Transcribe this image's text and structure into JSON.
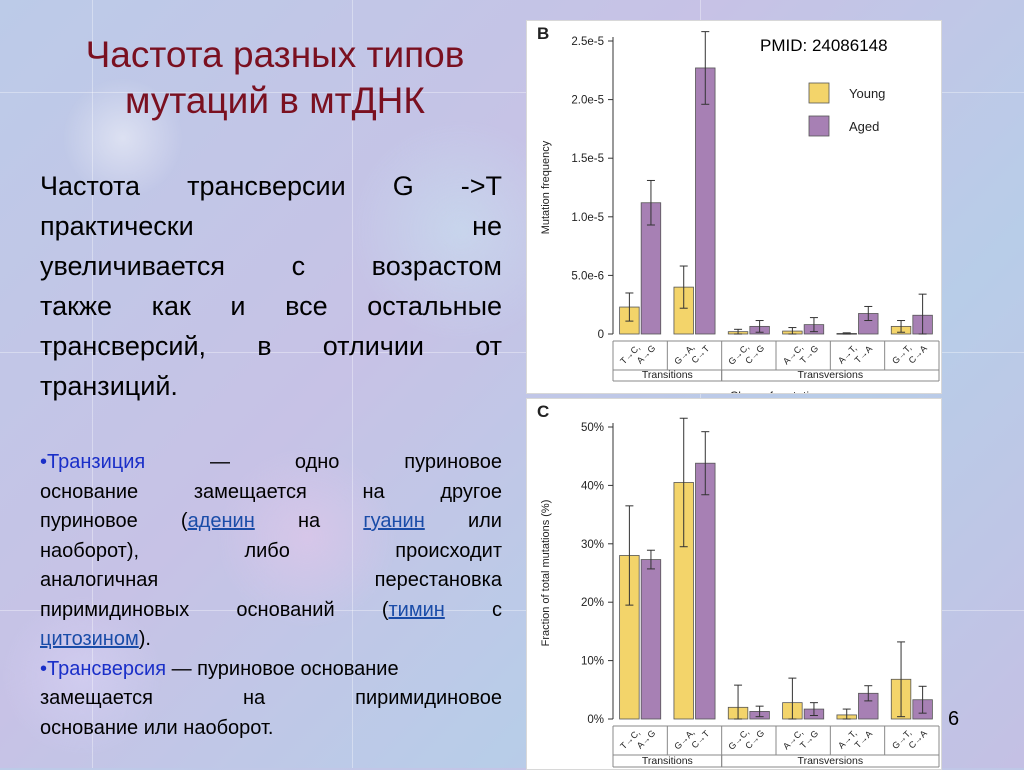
{
  "slide": {
    "title_line1": "Частота  разных типов",
    "title_line2": "мутаций в мтДНК",
    "page_number": "6",
    "pmid": "PMID: 24086148"
  },
  "lead": {
    "lines": [
      [
        "Частота",
        "трансверсии",
        "G",
        "->T"
      ],
      [
        "практически",
        "не"
      ],
      [
        "увеличивается",
        "с",
        "возрастом"
      ],
      [
        "также",
        "как",
        "и",
        "все",
        "остальные"
      ],
      [
        "трансверсий,",
        "в",
        "отличии",
        "от"
      ],
      [
        "транзиций."
      ]
    ]
  },
  "defs": {
    "bullet": "•",
    "transition_term": "Транзиция",
    "dash1": "—",
    "l1_rest": [
      "одно",
      "пуриновое"
    ],
    "l2": [
      "основание",
      "замещается",
      "на",
      "другое"
    ],
    "l3_a": "пуриновое",
    "l3_paren_open": "(",
    "adenin": "аденин",
    "l3_na": "на",
    "guanin": "гуанин",
    "l3_ili": "или",
    "l4": [
      "наоборот),",
      "либо",
      "происходит"
    ],
    "l5": [
      "аналогичная",
      "перестановка"
    ],
    "l6_a": [
      "пиримидиновых",
      "оснований"
    ],
    "l6_paren": "(",
    "timin": "тимин",
    "l6_s": "с",
    "citozin": "цитозином",
    "l7_tail": ").",
    "transversion_term": "Трансверсия",
    "l8_rest": " — пуриновое основание",
    "l9": [
      "замещается",
      "на",
      "пиримидиновое"
    ],
    "l10": "основание или наоборот."
  },
  "chart_data": [
    {
      "type": "bar",
      "panel_label": "B",
      "ylabel": "Mutation frequency",
      "xlabel": "Class of mutation",
      "ylim": [
        0,
        2.5e-05
      ],
      "yticks": [
        0,
        5e-06,
        1e-05,
        1.5e-05,
        2e-05,
        2.5e-05
      ],
      "ytick_labels": [
        "0",
        "5.0e-6",
        "1.0e-5",
        "1.5e-5",
        "2.0e-5",
        "2.5e-5"
      ],
      "categories": [
        [
          "T→C,",
          "A→G"
        ],
        [
          "G→A,",
          "C→T"
        ],
        [
          "G→C,",
          "C→G"
        ],
        [
          "A→C,",
          "T→G"
        ],
        [
          "A→T,",
          "T→A"
        ],
        [
          "G→T,",
          "C→A"
        ]
      ],
      "groups": [
        {
          "label": "Transitions",
          "from": 0,
          "to": 1
        },
        {
          "label": "Transversions",
          "from": 2,
          "to": 5
        }
      ],
      "series": [
        {
          "name": "Young",
          "color": "#f3d46a",
          "values": [
            2.3e-06,
            4e-06,
            2e-07,
            2.5e-07,
            5e-08,
            6.5e-07
          ],
          "err": [
            1.2e-06,
            1.8e-06,
            2e-07,
            3e-07,
            5e-08,
            5e-07
          ]
        },
        {
          "name": "Aged",
          "color": "#a780b4",
          "values": [
            1.12e-05,
            2.27e-05,
            6.5e-07,
            8e-07,
            1.75e-06,
            1.6e-06
          ],
          "err": [
            1.9e-06,
            3.1e-06,
            5e-07,
            6e-07,
            6e-07,
            1.8e-06
          ]
        }
      ],
      "legend_position": "top-right"
    },
    {
      "type": "bar",
      "panel_label": "C",
      "ylabel": "Fraction of total mutations (%)",
      "xlabel": "",
      "ylim": [
        0,
        50
      ],
      "yticks": [
        0,
        10,
        20,
        30,
        40,
        50
      ],
      "ytick_labels": [
        "0%",
        "10%",
        "20%",
        "30%",
        "40%",
        "50%"
      ],
      "categories": [
        [
          "T→C,",
          "A→G"
        ],
        [
          "G→A,",
          "C→T"
        ],
        [
          "G→C,",
          "C→G"
        ],
        [
          "A→C,",
          "T→G"
        ],
        [
          "A→T,",
          "T→A"
        ],
        [
          "G→T,",
          "C→A"
        ]
      ],
      "groups": [
        {
          "label": "Transitions",
          "from": 0,
          "to": 1
        },
        {
          "label": "Transversions",
          "from": 2,
          "to": 5
        }
      ],
      "series": [
        {
          "name": "Young",
          "color": "#f3d46a",
          "values": [
            28.0,
            40.5,
            2.0,
            2.8,
            0.7,
            6.8
          ],
          "err": [
            8.5,
            11.0,
            3.8,
            4.2,
            1.0,
            6.4
          ]
        },
        {
          "name": "Aged",
          "color": "#a780b4",
          "values": [
            27.3,
            43.8,
            1.3,
            1.7,
            4.4,
            3.3
          ],
          "err": [
            1.6,
            5.4,
            0.9,
            1.1,
            1.3,
            2.3
          ]
        }
      ]
    }
  ]
}
